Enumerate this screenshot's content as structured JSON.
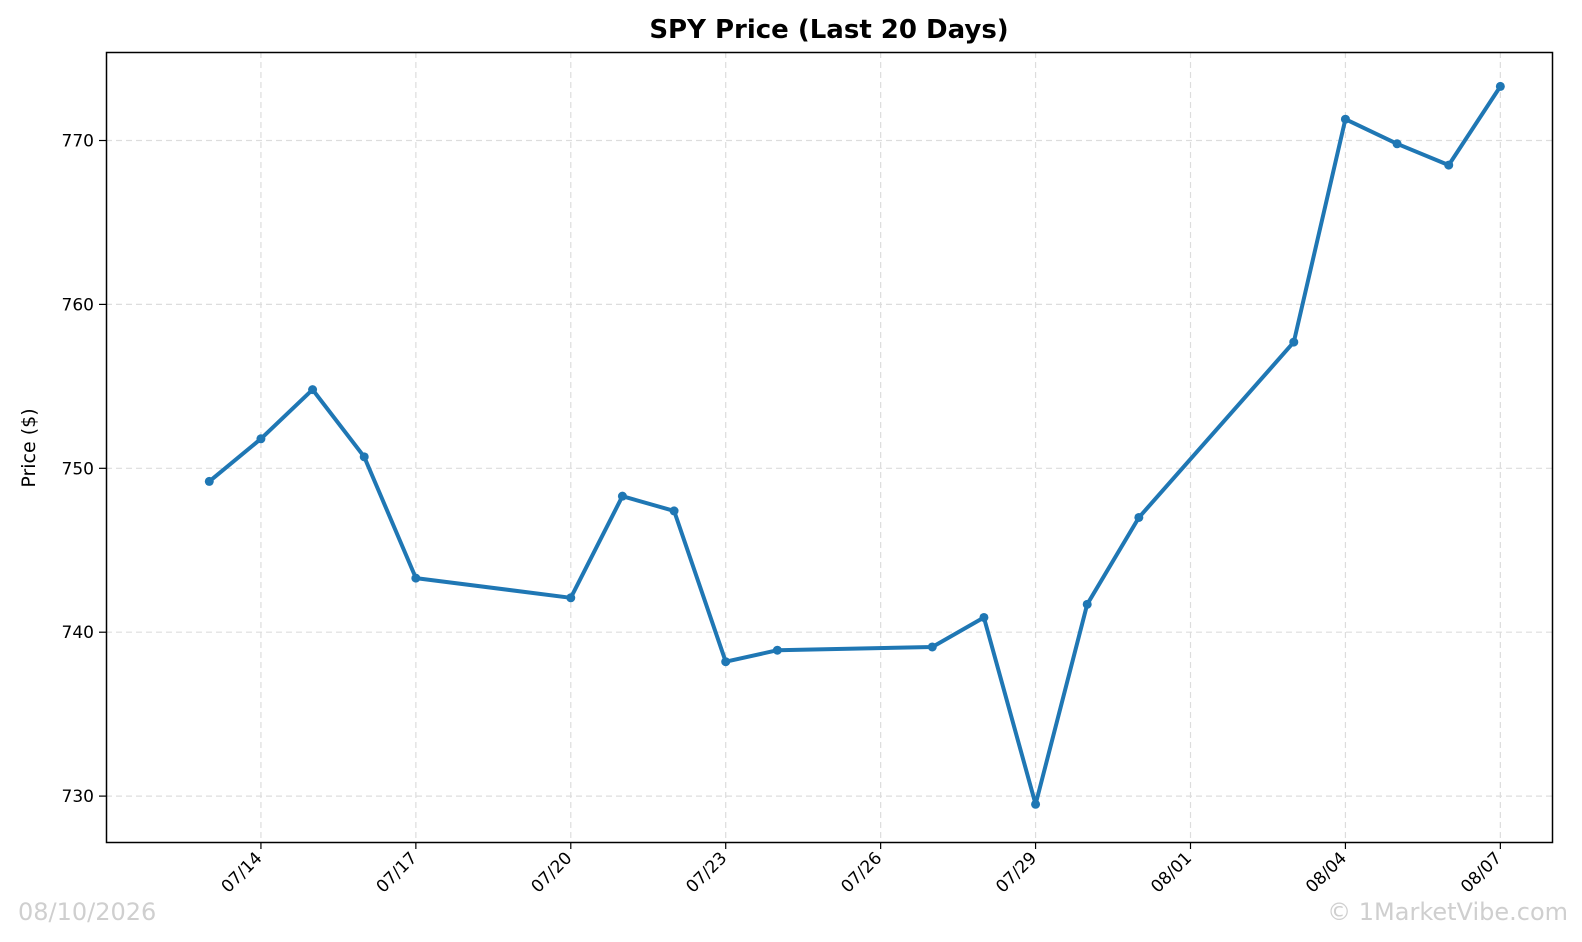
{
  "chart_data": {
    "type": "line",
    "title": "SPY Price (Last 20 Days)",
    "xlabel": "",
    "ylabel": "Price ($)",
    "x_ticks": [
      "07/14",
      "07/17",
      "07/20",
      "07/23",
      "07/26",
      "07/29",
      "08/01",
      "08/04",
      "08/07"
    ],
    "y_ticks": [
      730,
      740,
      750,
      760,
      770
    ],
    "xlim": [
      "2026-07-11",
      "2026-08-08"
    ],
    "ylim": [
      727.2,
      775.4
    ],
    "grid": true,
    "series": [
      {
        "color": "#1f77b4",
        "points": [
          {
            "x": "2026-07-13",
            "y": 749.2
          },
          {
            "x": "2026-07-14",
            "y": 751.8
          },
          {
            "x": "2026-07-15",
            "y": 754.8
          },
          {
            "x": "2026-07-16",
            "y": 750.7
          },
          {
            "x": "2026-07-17",
            "y": 743.3
          },
          {
            "x": "2026-07-20",
            "y": 742.1
          },
          {
            "x": "2026-07-21",
            "y": 748.3
          },
          {
            "x": "2026-07-22",
            "y": 747.4
          },
          {
            "x": "2026-07-23",
            "y": 738.2
          },
          {
            "x": "2026-07-24",
            "y": 738.9
          },
          {
            "x": "2026-07-27",
            "y": 739.1
          },
          {
            "x": "2026-07-28",
            "y": 740.9
          },
          {
            "x": "2026-07-29",
            "y": 729.5
          },
          {
            "x": "2026-07-30",
            "y": 741.7
          },
          {
            "x": "2026-07-31",
            "y": 747.0
          },
          {
            "x": "2026-08-03",
            "y": 757.7
          },
          {
            "x": "2026-08-04",
            "y": 771.3
          },
          {
            "x": "2026-08-05",
            "y": 769.8
          },
          {
            "x": "2026-08-06",
            "y": 768.5
          },
          {
            "x": "2026-08-07",
            "y": 773.3
          }
        ]
      }
    ]
  },
  "watermarks": {
    "date": "08/10/2026",
    "brand": "© 1MarketVibe.com"
  }
}
